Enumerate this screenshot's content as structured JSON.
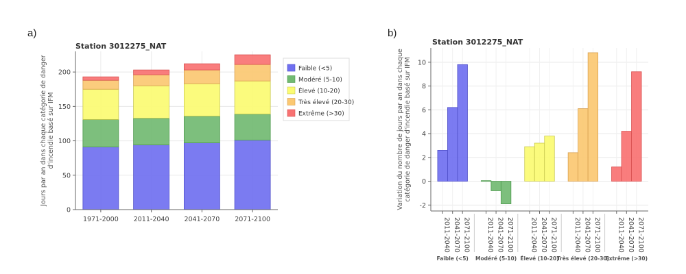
{
  "panels": {
    "a_label": "a)",
    "b_label": "b)"
  },
  "colors": {
    "faible": "#7070f0",
    "modere": "#72ba72",
    "eleve": "#fbfb72",
    "tres_eleve": "#fbc872",
    "extreme": "#f87272"
  },
  "chart_data": [
    {
      "type": "bar",
      "stacked": true,
      "title": "Station 3012275_NAT",
      "xlabel": "",
      "ylabel": "Jours par an dans chaque catégorie de danger d'incendie basé sur IFM",
      "ylim": [
        0,
        230
      ],
      "yticks": [
        0,
        50,
        100,
        150,
        200
      ],
      "grid": true,
      "legend_position": "right",
      "categories": [
        "1971-2000",
        "2011-2040",
        "2041-2070",
        "2071-2100"
      ],
      "series": [
        {
          "name": "Faible (<5)",
          "values": [
            91,
            94,
            97,
            101
          ]
        },
        {
          "name": "Modéré (5-10)",
          "values": [
            40,
            39,
            39,
            38
          ]
        },
        {
          "name": "Élevé (10-20)",
          "values": [
            44,
            47,
            47,
            48
          ]
        },
        {
          "name": "Très élevé (20-30)",
          "values": [
            13,
            16,
            20,
            24
          ]
        },
        {
          "name": "Extrême (>30)",
          "values": [
            5,
            7,
            9,
            14
          ]
        }
      ]
    },
    {
      "type": "bar",
      "grouped": true,
      "title": "Station 3012275_NAT",
      "xlabel": "",
      "ylabel": "Variation du nombre de jours par an dans chaque catégorie de danger d'incendie basé sur IFM",
      "ylim": [
        -2.5,
        11.2
      ],
      "yticks": [
        -2,
        0,
        2,
        4,
        6,
        8,
        10
      ],
      "grid": true,
      "groups": [
        "Faible (<5)",
        "Modéré (5-10)",
        "Élevé (10-20)",
        "Très élevé (20-30)",
        "Extrême (>30)"
      ],
      "periods": [
        "2011-2040",
        "2041-2070",
        "2071-2100"
      ],
      "values": [
        [
          2.6,
          6.2,
          9.8
        ],
        [
          0.05,
          -0.8,
          -1.9
        ],
        [
          2.9,
          3.2,
          3.8
        ],
        [
          2.4,
          6.1,
          10.8
        ],
        [
          1.2,
          4.2,
          9.2
        ]
      ]
    }
  ]
}
